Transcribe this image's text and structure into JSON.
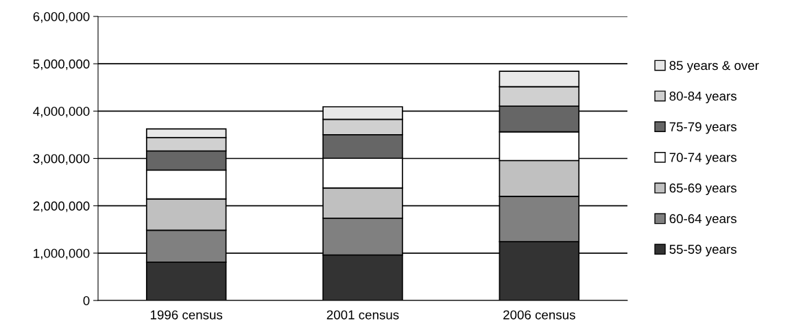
{
  "chart_data": {
    "type": "bar",
    "stacked": true,
    "categories": [
      "1996 census",
      "2001 census",
      "2006 census"
    ],
    "series": [
      {
        "name": "55-59 years",
        "color": "#333333",
        "values": [
          807000,
          961000,
          1242000
        ]
      },
      {
        "name": "60-64 years",
        "color": "#808080",
        "values": [
          676000,
          778000,
          957000
        ]
      },
      {
        "name": "65-69 years",
        "color": "#c0c0c0",
        "values": [
          662000,
          638000,
          758000
        ]
      },
      {
        "name": "70-74 years",
        "color": "#ffffff",
        "values": [
          609000,
          627000,
          604000
        ]
      },
      {
        "name": "75-79 years",
        "color": "#666666",
        "values": [
          405000,
          499000,
          545000
        ]
      },
      {
        "name": "80-84 years",
        "color": "#d0d0d0",
        "values": [
          280000,
          323000,
          411000
        ]
      },
      {
        "name": "85 years & over",
        "color": "#e8e8e8",
        "values": [
          184000,
          265000,
          324000
        ]
      }
    ],
    "ylim": [
      0,
      6000000
    ],
    "yticks": [
      0,
      {
        "value": 1000000,
        "label": "1,000,000"
      },
      {
        "value": 2000000,
        "label": "2,000,000"
      },
      {
        "value": 3000000,
        "label": "3,000,000"
      },
      {
        "value": 4000000,
        "label": "4,000,000"
      },
      {
        "value": 5000000,
        "label": "5,000,000"
      },
      {
        "value": 6000000,
        "label": "6,000,000"
      }
    ],
    "grid": "y",
    "legend": "right"
  }
}
